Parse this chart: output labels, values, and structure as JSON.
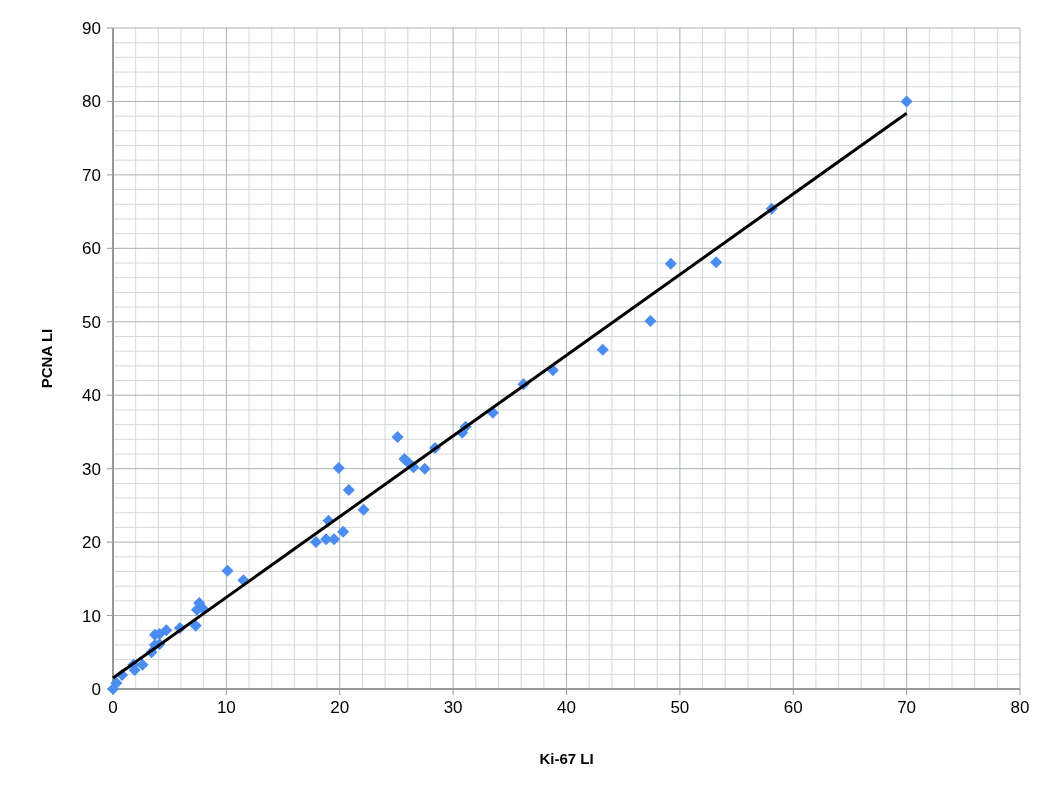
{
  "chart_data": {
    "type": "scatter",
    "xlabel": "Ki-67 LI",
    "ylabel": "PCNA LI",
    "xlim": [
      0,
      80
    ],
    "ylim": [
      0,
      90
    ],
    "xticks": [
      0,
      10,
      20,
      30,
      40,
      50,
      60,
      70,
      80
    ],
    "yticks": [
      0,
      10,
      20,
      30,
      40,
      50,
      60,
      70,
      80,
      90
    ],
    "grid": true,
    "marker": "diamond",
    "series": [
      {
        "color": "#4a8cf0",
        "x": [
          0,
          0.3,
          0.8,
          1.8,
          1.9,
          2.6,
          3.4,
          3.7,
          3.7,
          4.1,
          4.1,
          4.7,
          5.9,
          7.3,
          7.4,
          7.6,
          7.9,
          10.1,
          11.5,
          17.9,
          18.8,
          19.5,
          19.0,
          19.9,
          20.3,
          20.8,
          22.1,
          25.1,
          25.7,
          26.0,
          26.5,
          27.5,
          28.4,
          30.8,
          31.1,
          33.5,
          36.2,
          38.8,
          43.2,
          47.4,
          49.2,
          53.2,
          58.1,
          70.0
        ],
        "values": [
          0,
          0.8,
          1.9,
          3.3,
          2.6,
          3.3,
          5.0,
          6.0,
          7.4,
          7.5,
          6.1,
          8.0,
          8.3,
          8.6,
          10.8,
          11.7,
          11.0,
          16.1,
          14.8,
          20.0,
          20.4,
          20.4,
          22.9,
          30.1,
          21.4,
          27.1,
          24.4,
          34.3,
          31.3,
          30.9,
          30.2,
          30.0,
          32.8,
          34.9,
          35.7,
          37.6,
          41.5,
          43.4,
          46.2,
          50.1,
          57.9,
          58.1,
          65.4,
          80.0
        ]
      },
      {
        "type": "line",
        "color": "#000000",
        "marker": "none",
        "line_style": "solid",
        "x": [
          0,
          70
        ],
        "values": [
          1.5,
          78.4
        ]
      }
    ]
  }
}
